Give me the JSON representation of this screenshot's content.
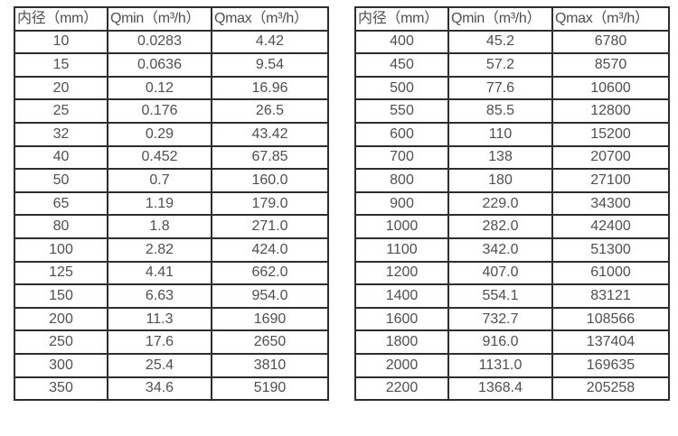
{
  "colors": {
    "border": "#2e2e2e",
    "text": "#4f4f4f",
    "background": "#ffffff"
  },
  "tables": [
    {
      "name": "small-diameter-flow-rates",
      "headers": [
        "内径（mm）",
        "Qmin（m³/h）",
        "Qmax（m³/h）"
      ],
      "rows": [
        [
          "10",
          "0.0283",
          "4.42"
        ],
        [
          "15",
          "0.0636",
          "9.54"
        ],
        [
          "20",
          "0.12",
          "16.96"
        ],
        [
          "25",
          "0.176",
          "26.5"
        ],
        [
          "32",
          "0.29",
          "43.42"
        ],
        [
          "40",
          "0.452",
          "67.85"
        ],
        [
          "50",
          "0.7",
          "160.0"
        ],
        [
          "65",
          "1.19",
          "179.0"
        ],
        [
          "80",
          "1.8",
          "271.0"
        ],
        [
          "100",
          "2.82",
          "424.0"
        ],
        [
          "125",
          "4.41",
          "662.0"
        ],
        [
          "150",
          "6.63",
          "954.0"
        ],
        [
          "200",
          "11.3",
          "1690"
        ],
        [
          "250",
          "17.6",
          "2650"
        ],
        [
          "300",
          "25.4",
          "3810"
        ],
        [
          "350",
          "34.6",
          "5190"
        ]
      ]
    },
    {
      "name": "large-diameter-flow-rates",
      "headers": [
        "内径（mm）",
        "Qmin（m³/h）",
        "Qmax（m³/h）"
      ],
      "rows": [
        [
          "400",
          "45.2",
          "6780"
        ],
        [
          "450",
          "57.2",
          "8570"
        ],
        [
          "500",
          "77.6",
          "10600"
        ],
        [
          "550",
          "85.5",
          "12800"
        ],
        [
          "600",
          "110",
          "15200"
        ],
        [
          "700",
          "138",
          "20700"
        ],
        [
          "800",
          "180",
          "27100"
        ],
        [
          "900",
          "229.0",
          "34300"
        ],
        [
          "1000",
          "282.0",
          "42400"
        ],
        [
          "1100",
          "342.0",
          "51300"
        ],
        [
          "1200",
          "407.0",
          "61000"
        ],
        [
          "1400",
          "554.1",
          "83121"
        ],
        [
          "1600",
          "732.7",
          "108566"
        ],
        [
          "1800",
          "916.0",
          "137404"
        ],
        [
          "2000",
          "1131.0",
          "169635"
        ],
        [
          "2200",
          "1368.4",
          "205258"
        ]
      ]
    }
  ]
}
